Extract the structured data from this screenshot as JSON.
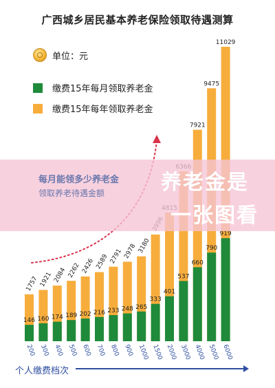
{
  "title": "广西城乡居民基本养老保险领取待遇测算",
  "unit_label": "单位：元",
  "legend": {
    "monthly": "缴费15年每月领取养老金",
    "yearly": "缴费15年每年领取养老金"
  },
  "banner": {
    "line1": "每月能领多少养老金",
    "line2": "领取养老待遇金额",
    "big1": "养老金是",
    "big2": "一张图看"
  },
  "xaxis_title": "个人缴费档次",
  "colors": {
    "monthly": "#1f8a3a",
    "yearly": "#f7ad3c",
    "axis": "#2e4fa0",
    "arrow": "#d9334a"
  },
  "chart_data": {
    "type": "bar",
    "categories": [
      "200",
      "300",
      "400",
      "500",
      "600",
      "700",
      "800",
      "900",
      "1000",
      "1500",
      "2000",
      "3000",
      "4000",
      "5000",
      "6000"
    ],
    "series": [
      {
        "name": "缴费15年每月领取养老金",
        "values": [
          146,
          160,
          174,
          189,
          202,
          216,
          233,
          248,
          265,
          333,
          401,
          537,
          660,
          790,
          919
        ]
      },
      {
        "name": "缴费15年每年领取养老金",
        "values": [
          1757,
          1921,
          2084,
          2262,
          2426,
          2589,
          2791,
          2978,
          3180,
          3996,
          4815,
          6366,
          7921,
          9475,
          11029
        ]
      }
    ],
    "title": "广西城乡居民基本养老保险领取待遇测算",
    "xlabel": "个人缴费档次",
    "ylabel": "",
    "ylim": [
      0,
      11029
    ]
  }
}
